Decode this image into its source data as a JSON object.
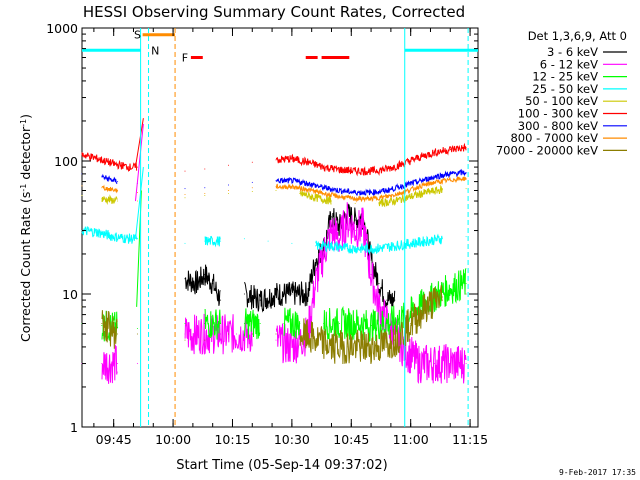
{
  "chart_data": {
    "type": "line",
    "title": "HESSI Observing Summary Count Rates, Corrected",
    "ylabel_parts": [
      "Corrected Count Rate (s",
      "-1",
      " detector",
      "-1",
      ")"
    ],
    "xlabel": "Start Time (05-Sep-14 09:37:02)",
    "y_scale": "log",
    "ylim": [
      1,
      1000
    ],
    "y_ticks": [
      {
        "v": 1,
        "label": "1"
      },
      {
        "v": 10,
        "label": "10"
      },
      {
        "v": 100,
        "label": "100"
      },
      {
        "v": 1000,
        "label": "1000"
      }
    ],
    "xlim_min": [
      577,
      677
    ],
    "x_ticks": [
      {
        "v": 585,
        "label": "09:45"
      },
      {
        "v": 600,
        "label": "10:00"
      },
      {
        "v": 615,
        "label": "10:15"
      },
      {
        "v": 630,
        "label": "10:30"
      },
      {
        "v": 645,
        "label": "10:45"
      },
      {
        "v": 660,
        "label": "11:00"
      },
      {
        "v": 675,
        "label": "11:15"
      }
    ],
    "legend_title": "Det 1,3,6,9, Att 0",
    "legend_position": "right",
    "footer": "9-Feb-2017 17:35",
    "series": [
      {
        "name": "3 - 6 keV",
        "color": "#000000",
        "points": [
          [
            603,
            13
          ],
          [
            606,
            12
          ],
          [
            608,
            14
          ],
          [
            610,
            12
          ],
          [
            612,
            9
          ],
          [
            618,
            10
          ],
          [
            622,
            9
          ],
          [
            626,
            10
          ],
          [
            630,
            10
          ],
          [
            634,
            10
          ],
          [
            636,
            18
          ],
          [
            638,
            22
          ],
          [
            640,
            38
          ],
          [
            642,
            32
          ],
          [
            644,
            40
          ],
          [
            646,
            36
          ],
          [
            648,
            38
          ],
          [
            650,
            18
          ],
          [
            652,
            12
          ],
          [
            654,
            9
          ],
          [
            656,
            9
          ]
        ]
      },
      {
        "name": "6 - 12 keV",
        "color": "#ff00ff",
        "points": [
          [
            577,
            3
          ],
          [
            582,
            3
          ],
          [
            586,
            3
          ],
          [
            591,
            3
          ],
          [
            603,
            5
          ],
          [
            606,
            5
          ],
          [
            610,
            5
          ],
          [
            612,
            5
          ],
          [
            616,
            5
          ],
          [
            620,
            5
          ],
          [
            626,
            4.5
          ],
          [
            630,
            4
          ],
          [
            634,
            5
          ],
          [
            636,
            12
          ],
          [
            638,
            20
          ],
          [
            640,
            30
          ],
          [
            642,
            26
          ],
          [
            644,
            36
          ],
          [
            646,
            30
          ],
          [
            648,
            32
          ],
          [
            650,
            14
          ],
          [
            652,
            8
          ],
          [
            654,
            6
          ],
          [
            656,
            5
          ],
          [
            658,
            4
          ],
          [
            662,
            3
          ],
          [
            666,
            3
          ],
          [
            670,
            3
          ],
          [
            674,
            3
          ]
        ]
      },
      {
        "name": "12 - 25 keV",
        "color": "#00ff00",
        "points": [
          [
            577,
            6
          ],
          [
            582,
            5.8
          ],
          [
            586,
            5.6
          ],
          [
            591,
            5.5
          ],
          [
            603,
            6
          ],
          [
            608,
            6
          ],
          [
            612,
            6
          ],
          [
            618,
            6
          ],
          [
            622,
            6
          ],
          [
            628,
            6
          ],
          [
            632,
            6
          ],
          [
            638,
            6
          ],
          [
            642,
            6
          ],
          [
            646,
            6
          ],
          [
            650,
            5.8
          ],
          [
            654,
            6
          ],
          [
            658,
            6.5
          ],
          [
            662,
            8
          ],
          [
            666,
            9.5
          ],
          [
            670,
            11
          ],
          [
            674,
            12
          ]
        ]
      },
      {
        "name": "25 - 50 keV",
        "color": "#00ffff",
        "points": [
          [
            577,
            30
          ],
          [
            581,
            29
          ],
          [
            585,
            27
          ],
          [
            589,
            26
          ],
          [
            591,
            26
          ],
          [
            603,
            24
          ],
          [
            608,
            25
          ],
          [
            612,
            25
          ],
          [
            618,
            26
          ],
          [
            624,
            25
          ],
          [
            630,
            24
          ],
          [
            636,
            23
          ],
          [
            640,
            23
          ],
          [
            644,
            22
          ],
          [
            648,
            22
          ],
          [
            652,
            22
          ],
          [
            656,
            23
          ],
          [
            660,
            24
          ],
          [
            664,
            25
          ],
          [
            668,
            26
          ],
          [
            674,
            27
          ]
        ]
      },
      {
        "name": "50 - 100 keV",
        "color": "#ccc800",
        "points": [
          [
            577,
            55
          ],
          [
            582,
            52
          ],
          [
            586,
            50
          ],
          [
            591,
            50
          ],
          [
            603,
            53
          ],
          [
            608,
            55
          ],
          [
            614,
            57
          ],
          [
            620,
            59
          ],
          [
            626,
            60
          ],
          [
            632,
            57
          ],
          [
            636,
            53
          ],
          [
            640,
            50
          ],
          [
            646,
            48
          ],
          [
            652,
            48
          ],
          [
            656,
            50
          ],
          [
            660,
            54
          ],
          [
            664,
            58
          ],
          [
            668,
            61
          ],
          [
            674,
            62
          ]
        ]
      },
      {
        "name": "100 - 300 keV",
        "color": "#ff0000",
        "points": [
          [
            577,
            112
          ],
          [
            581,
            104
          ],
          [
            585,
            95
          ],
          [
            589,
            90
          ],
          [
            591,
            90
          ],
          [
            603,
            84
          ],
          [
            608,
            87
          ],
          [
            614,
            93
          ],
          [
            620,
            98
          ],
          [
            626,
            102
          ],
          [
            630,
            104
          ],
          [
            634,
            98
          ],
          [
            638,
            90
          ],
          [
            642,
            86
          ],
          [
            646,
            84
          ],
          [
            650,
            84
          ],
          [
            654,
            87
          ],
          [
            658,
            95
          ],
          [
            662,
            106
          ],
          [
            666,
            116
          ],
          [
            670,
            122
          ],
          [
            674,
            126
          ]
        ]
      },
      {
        "name": "300 - 800 keV",
        "color": "#0000ff",
        "points": [
          [
            577,
            80
          ],
          [
            582,
            76
          ],
          [
            586,
            70
          ],
          [
            591,
            68
          ],
          [
            603,
            62
          ],
          [
            608,
            63
          ],
          [
            614,
            66
          ],
          [
            620,
            69
          ],
          [
            626,
            71
          ],
          [
            630,
            71
          ],
          [
            634,
            68
          ],
          [
            638,
            63
          ],
          [
            642,
            60
          ],
          [
            646,
            58
          ],
          [
            650,
            58
          ],
          [
            654,
            60
          ],
          [
            658,
            65
          ],
          [
            662,
            70
          ],
          [
            666,
            76
          ],
          [
            670,
            80
          ],
          [
            674,
            82
          ]
        ]
      },
      {
        "name": "800 - 7000 keV",
        "color": "#ff8c00",
        "points": [
          [
            577,
            65
          ],
          [
            582,
            63
          ],
          [
            586,
            60
          ],
          [
            591,
            58
          ],
          [
            603,
            56
          ],
          [
            608,
            57
          ],
          [
            614,
            60
          ],
          [
            620,
            63
          ],
          [
            626,
            64
          ],
          [
            630,
            64
          ],
          [
            634,
            61
          ],
          [
            638,
            57
          ],
          [
            642,
            54
          ],
          [
            646,
            52
          ],
          [
            650,
            52
          ],
          [
            654,
            54
          ],
          [
            658,
            58
          ],
          [
            662,
            64
          ],
          [
            666,
            69
          ],
          [
            670,
            72
          ],
          [
            674,
            74
          ]
        ]
      },
      {
        "name": "7000 - 20000 keV",
        "color": "#8b7d00",
        "points": [
          [
            577,
            8
          ],
          [
            582,
            6
          ],
          [
            586,
            5
          ],
          [
            591,
            5
          ],
          [
            603,
            4.5
          ],
          [
            608,
            4.5
          ],
          [
            614,
            5
          ],
          [
            620,
            5
          ],
          [
            626,
            5
          ],
          [
            632,
            5
          ],
          [
            636,
            4.5
          ],
          [
            640,
            4
          ],
          [
            644,
            4
          ],
          [
            648,
            4
          ],
          [
            652,
            4
          ],
          [
            656,
            4.5
          ],
          [
            660,
            6
          ],
          [
            664,
            8
          ],
          [
            668,
            9.5
          ],
          [
            674,
            10
          ]
        ]
      }
    ],
    "rise_segments": [
      {
        "color": "#ff0000",
        "from": [
          590.5,
          90
        ],
        "to": [
          592.5,
          210
        ]
      },
      {
        "color": "#ff00ff",
        "from": [
          590.5,
          50
        ],
        "to": [
          592.5,
          190
        ]
      },
      {
        "color": "#00ffff",
        "from": [
          590.5,
          26
        ],
        "to": [
          592.5,
          90
        ]
      },
      {
        "color": "#00ff00",
        "from": [
          590.8,
          8
        ],
        "to": [
          592.0,
          60
        ]
      }
    ],
    "status_bars": [
      {
        "label": "S",
        "color": "#ff8c00",
        "label_at": 591,
        "from": 592.3,
        "to": 600.5,
        "level": 890
      },
      {
        "label": "N",
        "color": "#00ffff",
        "label_at": 595.5,
        "from": 577,
        "to": 591.8,
        "level": 680
      },
      {
        "label": "N",
        "color": "#00ffff",
        "label_at": null,
        "from": 658.5,
        "to": 677,
        "level": 680
      },
      {
        "label": "F",
        "color": "#ff0000",
        "label_at": 603,
        "from": 604.5,
        "to": 607.5,
        "level": 600
      },
      {
        "label": "",
        "color": "#ff0000",
        "label_at": null,
        "from": 633.5,
        "to": 636.5,
        "level": 600
      },
      {
        "label": "",
        "color": "#ff0000",
        "label_at": null,
        "from": 637.5,
        "to": 644.5,
        "level": 600
      }
    ],
    "vlines": [
      {
        "x": 591.8,
        "color": "#00ffff",
        "dash": false
      },
      {
        "x": 593.8,
        "color": "#00ffff",
        "dash": true
      },
      {
        "x": 600.5,
        "color": "#ff8c00",
        "dash": true
      },
      {
        "x": 658.5,
        "color": "#00ffff",
        "dash": false
      },
      {
        "x": 674.5,
        "color": "#00ffff",
        "dash": true
      }
    ],
    "grid": false
  }
}
